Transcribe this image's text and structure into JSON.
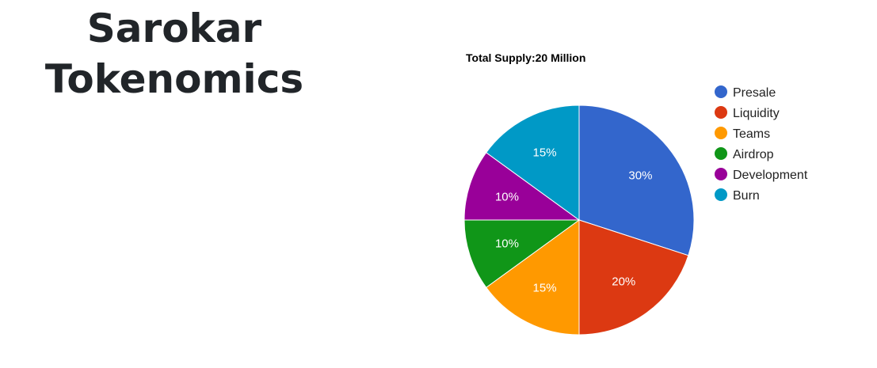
{
  "page": {
    "title_line1": "Sarokar",
    "title_line2": "Tokenomics"
  },
  "chart_data": {
    "type": "pie",
    "title": "Total Supply:20 Million",
    "legend_position": "right",
    "slices": [
      {
        "label": "Presale",
        "value": 30,
        "display": "30%",
        "color": "#3366cc"
      },
      {
        "label": "Liquidity",
        "value": 20,
        "display": "20%",
        "color": "#dc3912"
      },
      {
        "label": "Teams",
        "value": 15,
        "display": "15%",
        "color": "#ff9900"
      },
      {
        "label": "Airdrop",
        "value": 10,
        "display": "10%",
        "color": "#109618"
      },
      {
        "label": "Development",
        "value": 10,
        "display": "10%",
        "color": "#990099"
      },
      {
        "label": "Burn",
        "value": 15,
        "display": "15%",
        "color": "#0099c6"
      }
    ]
  }
}
